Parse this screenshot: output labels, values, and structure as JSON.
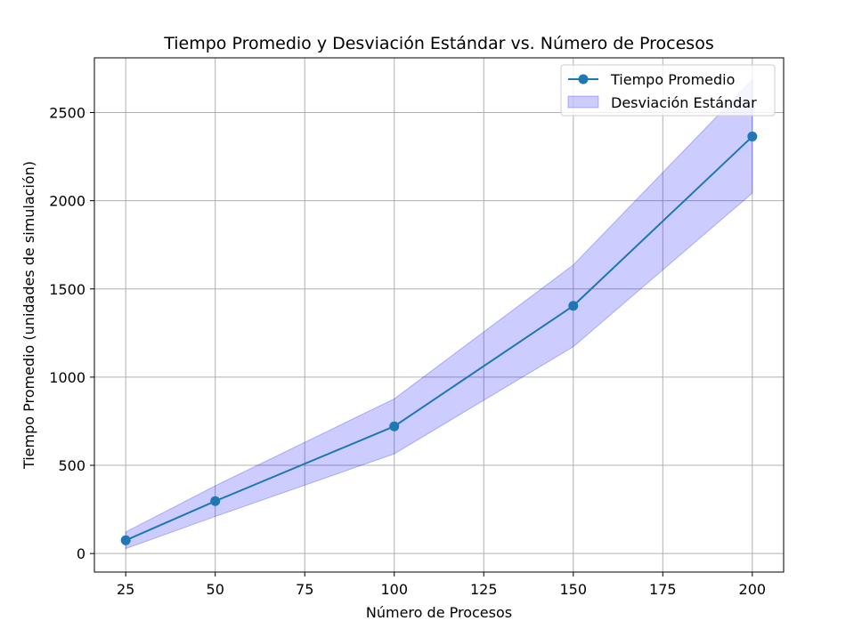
{
  "chart_data": {
    "type": "line",
    "title": "Tiempo Promedio y Desviación Estándar vs. Número de Procesos",
    "xlabel": "Número de Procesos",
    "ylabel": "Tiempo Promedio (unidades de simulación)",
    "xlim": [
      16.25,
      208.75
    ],
    "ylim": [
      -105,
      2810
    ],
    "xticks": [
      25,
      50,
      75,
      100,
      125,
      150,
      175,
      200
    ],
    "yticks": [
      0,
      500,
      1000,
      1500,
      2000,
      2500
    ],
    "grid": true,
    "legend_position": "top-right",
    "x": [
      25,
      50,
      100,
      150,
      200
    ],
    "series": [
      {
        "name": "Tiempo Promedio",
        "kind": "line-marker",
        "color": "#1f77b4",
        "values": [
          75,
          297,
          721,
          1404,
          2364
        ]
      }
    ],
    "band": {
      "name": "Desviación Estándar",
      "color": "#0000ff",
      "lower": [
        28,
        210,
        565,
        1172,
        2043
      ],
      "upper": [
        122,
        384,
        877,
        1636,
        2685
      ]
    }
  }
}
